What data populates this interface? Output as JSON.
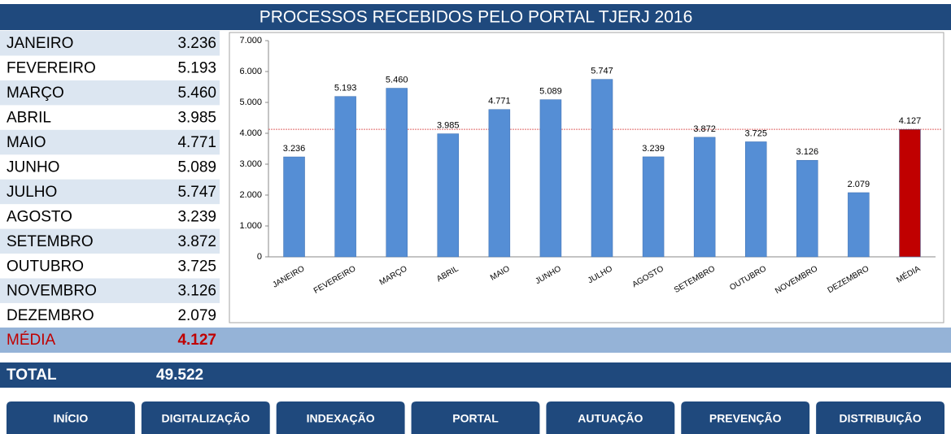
{
  "header": {
    "title": "PROCESSOS RECEBIDOS PELO PORTAL TJERJ 2016"
  },
  "total": {
    "label": "TOTAL",
    "value": "49.522"
  },
  "nav": [
    "INÍCIO",
    "DIGITALIZAÇÃO",
    "INDEXAÇÃO",
    "PORTAL",
    "AUTUAÇÃO",
    "PREVENÇÃO",
    "DISTRIBUIÇÃO"
  ],
  "chart_data": {
    "type": "bar",
    "categories": [
      "JANEIRO",
      "FEVEREIRO",
      "MARÇO",
      "ABRIL",
      "MAIO",
      "JUNHO",
      "JULHO",
      "AGOSTO",
      "SETEMBRO",
      "OUTUBRO",
      "NOVEMBRO",
      "DEZEMBRO",
      "MÉDIA"
    ],
    "values": [
      3236,
      5193,
      5460,
      3985,
      4771,
      5089,
      5747,
      3239,
      3872,
      3725,
      3126,
      2079,
      4127
    ],
    "value_labels": [
      "3.236",
      "5.193",
      "5.460",
      "3.985",
      "4.771",
      "5.089",
      "5.747",
      "3.239",
      "3.872",
      "3.725",
      "3.126",
      "2.079",
      "4.127"
    ],
    "colors": [
      "#558ed5",
      "#558ed5",
      "#558ed5",
      "#558ed5",
      "#558ed5",
      "#558ed5",
      "#558ed5",
      "#558ed5",
      "#558ed5",
      "#558ed5",
      "#558ed5",
      "#558ed5",
      "#c00000"
    ],
    "ylim": [
      0,
      7000
    ],
    "yticks": [
      0,
      {
        "value": 1000,
        "label": "1.000"
      },
      {
        "value": 2000,
        "label": "2.000"
      },
      {
        "value": 3000,
        "label": "3.000"
      },
      {
        "value": 4000,
        "label": "4.000"
      },
      {
        "value": 5000,
        "label": "5.000"
      },
      {
        "value": 6000,
        "label": "6.000"
      },
      {
        "value": 7000,
        "label": "7.000"
      }
    ]
  }
}
